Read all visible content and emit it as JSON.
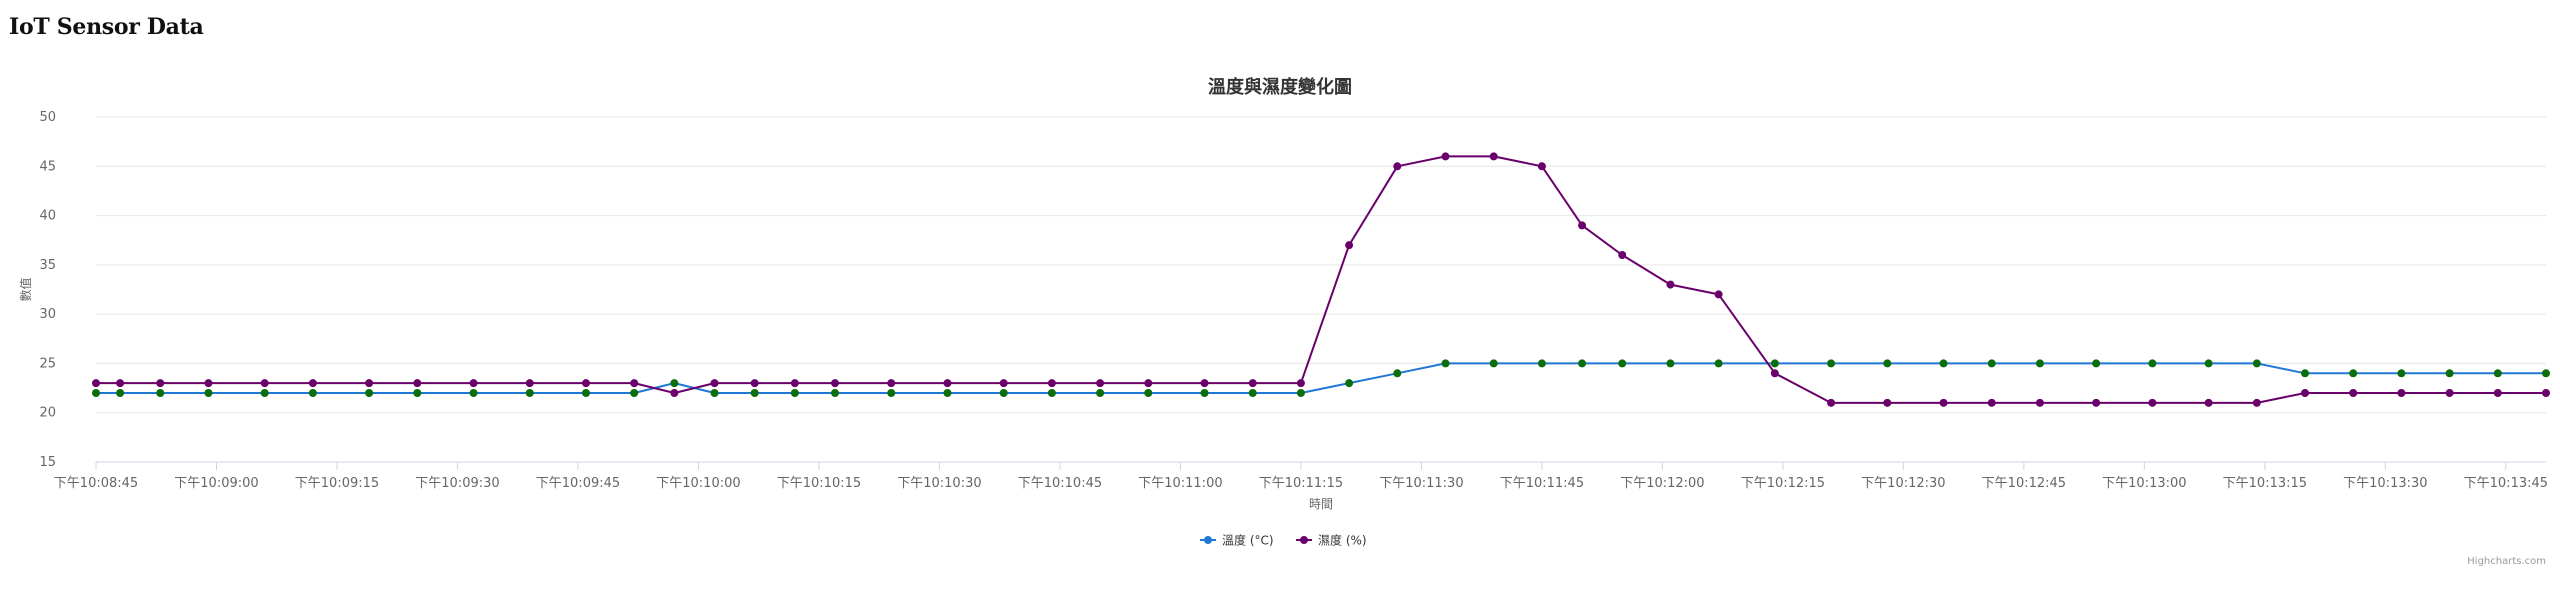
{
  "page": {
    "title": "IoT Sensor Data"
  },
  "chart_data": {
    "type": "line",
    "title": "溫度與濕度變化圖",
    "xlabel": "時間",
    "ylabel": "數值",
    "ylim": [
      15,
      50
    ],
    "yticks": [
      15,
      20,
      25,
      30,
      35,
      40,
      45,
      50
    ],
    "xlim": [
      "22:08:45",
      "22:13:50"
    ],
    "xticks": [
      "22:08:45",
      "22:09:00",
      "22:09:15",
      "22:09:30",
      "22:09:45",
      "22:10:00",
      "22:10:15",
      "22:10:30",
      "22:10:45",
      "22:11:00",
      "22:11:15",
      "22:11:30",
      "22:11:45",
      "22:12:00",
      "22:12:15",
      "22:12:30",
      "22:12:45",
      "22:13:00",
      "22:13:15",
      "22:13:30",
      "22:13:45"
    ],
    "xtick_labels": [
      "下午10:08:45",
      "下午10:09:00",
      "下午10:09:15",
      "下午10:09:30",
      "下午10:09:45",
      "下午10:10:00",
      "下午10:10:15",
      "下午10:10:30",
      "下午10:10:45",
      "下午10:11:00",
      "下午10:11:15",
      "下午10:11:30",
      "下午10:11:45",
      "下午10:12:00",
      "下午10:12:15",
      "下午10:12:30",
      "下午10:12:45",
      "下午10:13:00",
      "下午10:13:15",
      "下午10:13:30",
      "下午10:13:45"
    ],
    "grid": "horizontal",
    "legend_position": "bottom-center",
    "x": [
      "22:08:45",
      "22:08:48",
      "22:08:53",
      "22:08:59",
      "22:09:06",
      "22:09:12",
      "22:09:19",
      "22:09:25",
      "22:09:32",
      "22:09:39",
      "22:09:46",
      "22:09:52",
      "22:09:57",
      "22:10:02",
      "22:10:07",
      "22:10:12",
      "22:10:17",
      "22:10:24",
      "22:10:31",
      "22:10:38",
      "22:10:44",
      "22:10:50",
      "22:10:56",
      "22:11:03",
      "22:11:09",
      "22:11:15",
      "22:11:21",
      "22:11:27",
      "22:11:33",
      "22:11:39",
      "22:11:45",
      "22:11:50",
      "22:11:55",
      "22:12:01",
      "22:12:07",
      "22:12:14",
      "22:12:21",
      "22:12:28",
      "22:12:35",
      "22:12:41",
      "22:12:47",
      "22:12:54",
      "22:13:01",
      "22:13:08",
      "22:13:14",
      "22:13:20",
      "22:13:26",
      "22:13:32",
      "22:13:38",
      "22:13:44",
      "22:13:50"
    ],
    "series": [
      {
        "name": "溫度 (°C)",
        "line_color": "#1f78d6",
        "marker_color": "#0b6e0b",
        "values": [
          22,
          22,
          22,
          22,
          22,
          22,
          22,
          22,
          22,
          22,
          22,
          22,
          23,
          22,
          22,
          22,
          22,
          22,
          22,
          22,
          22,
          22,
          22,
          22,
          22,
          22,
          23,
          24,
          25,
          25,
          25,
          25,
          25,
          25,
          25,
          25,
          25,
          25,
          25,
          25,
          25,
          25,
          25,
          25,
          25,
          24,
          24,
          24,
          24,
          24,
          24
        ]
      },
      {
        "name": "濕度 (%)",
        "line_color": "#6a006a",
        "marker_color": "#6a006a",
        "values": [
          23,
          23,
          23,
          23,
          23,
          23,
          23,
          23,
          23,
          23,
          23,
          23,
          22,
          23,
          23,
          23,
          23,
          23,
          23,
          23,
          23,
          23,
          23,
          23,
          23,
          23,
          37,
          45,
          46,
          46,
          45,
          39,
          36,
          33,
          32,
          24,
          21,
          21,
          21,
          21,
          21,
          21,
          21,
          21,
          21,
          22,
          22,
          22,
          22,
          22,
          22
        ]
      }
    ]
  },
  "credits": "Highcharts.com"
}
